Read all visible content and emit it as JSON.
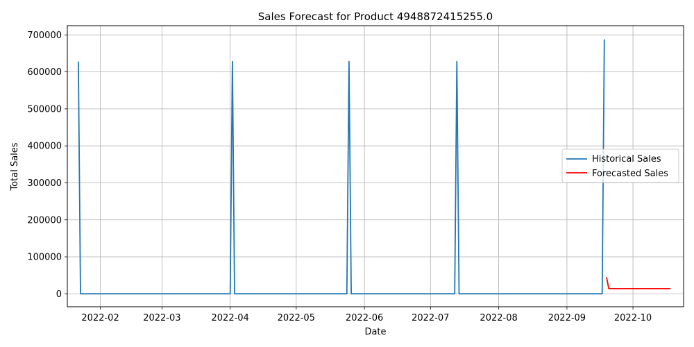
{
  "chart_data": {
    "type": "line",
    "title": "Sales Forecast for Product 4948872415255.0",
    "xlabel": "Date",
    "ylabel": "Total Sales",
    "xlim": [
      "2022-01-17",
      "2022-10-24"
    ],
    "ylim": [
      -35000,
      725000
    ],
    "grid": true,
    "legend_position": "center-right",
    "x_ticks": [
      "2022-02-01",
      "2022-03-01",
      "2022-04-01",
      "2022-05-01",
      "2022-06-01",
      "2022-07-01",
      "2022-08-01",
      "2022-09-01",
      "2022-10-01"
    ],
    "x_tick_labels": [
      "2022-02",
      "2022-03",
      "2022-04",
      "2022-05",
      "2022-06",
      "2022-07",
      "2022-08",
      "2022-09",
      "2022-10"
    ],
    "y_ticks": [
      0,
      100000,
      200000,
      300000,
      400000,
      500000,
      600000,
      700000
    ],
    "y_tick_labels": [
      "0",
      "100000",
      "200000",
      "300000",
      "400000",
      "500000",
      "600000",
      "700000"
    ],
    "series": [
      {
        "name": "Historical Sales",
        "color": "#1f77b4",
        "x": [
          "2022-01-22",
          "2022-01-23",
          "2022-04-01",
          "2022-04-02",
          "2022-04-03",
          "2022-05-24",
          "2022-05-25",
          "2022-05-26",
          "2022-07-12",
          "2022-07-13",
          "2022-07-14",
          "2022-09-17",
          "2022-09-18"
        ],
        "y": [
          628000,
          0,
          0,
          628000,
          0,
          0,
          628000,
          0,
          0,
          628000,
          0,
          0,
          688000
        ]
      },
      {
        "name": "Forecasted Sales",
        "color": "#ff0000",
        "x": [
          "2022-09-19",
          "2022-09-20",
          "2022-10-01",
          "2022-10-10",
          "2022-10-18"
        ],
        "y": [
          45000,
          14000,
          14000,
          14000,
          14000
        ]
      }
    ]
  }
}
